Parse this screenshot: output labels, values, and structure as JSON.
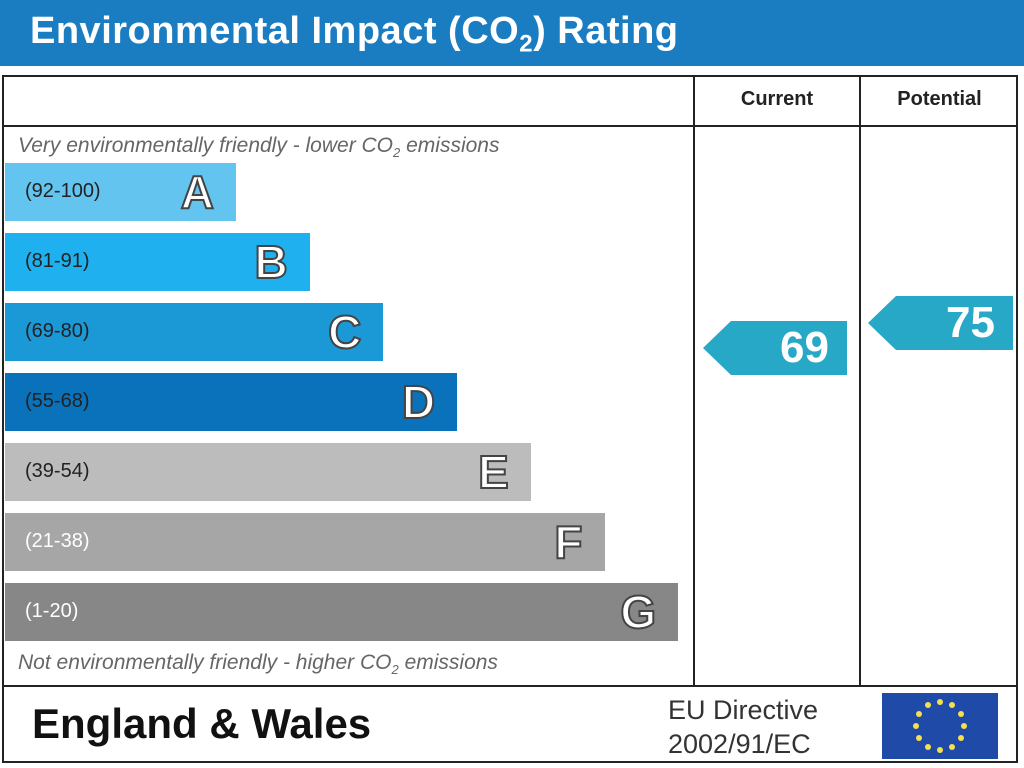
{
  "title": {
    "main": "Environmental Impact (CO",
    "sub": "2",
    "end": ") Rating"
  },
  "columns": {
    "current": "Current",
    "potential": "Potential"
  },
  "notes": {
    "top": {
      "pre": "Very environmentally friendly - lower CO",
      "sub": "2",
      "post": " emissions"
    },
    "bottom": {
      "pre": "Not environmentally friendly - higher CO",
      "sub": "2",
      "post": " emissions"
    }
  },
  "chart_data": {
    "type": "bar",
    "bands": [
      {
        "letter": "A",
        "range": "(92-100)",
        "color": "#63c5ef"
      },
      {
        "letter": "B",
        "range": "(81-91)",
        "color": "#1fb1ef"
      },
      {
        "letter": "C",
        "range": "(69-80)",
        "color": "#1b98d6"
      },
      {
        "letter": "D",
        "range": "(55-68)",
        "color": "#0a72bb"
      },
      {
        "letter": "E",
        "range": "(39-54)",
        "color": "#bcbcbc"
      },
      {
        "letter": "F",
        "range": "(21-38)",
        "color": "#a6a6a6"
      },
      {
        "letter": "G",
        "range": "(1-20)",
        "color": "#878787"
      }
    ],
    "current": {
      "value": 69,
      "label": "69",
      "band": "C",
      "color": "#27a8c6"
    },
    "potential": {
      "value": 75,
      "label": "75",
      "band": "C",
      "color": "#27a8c6"
    }
  },
  "footer": {
    "region": "England & Wales",
    "directive_line1": "EU Directive",
    "directive_line2": "2002/91/EC"
  },
  "colors": {
    "title_bar": "#1a7cc1",
    "eu_flag": "#1f4aa8",
    "eu_stars": "#f4e04d"
  }
}
